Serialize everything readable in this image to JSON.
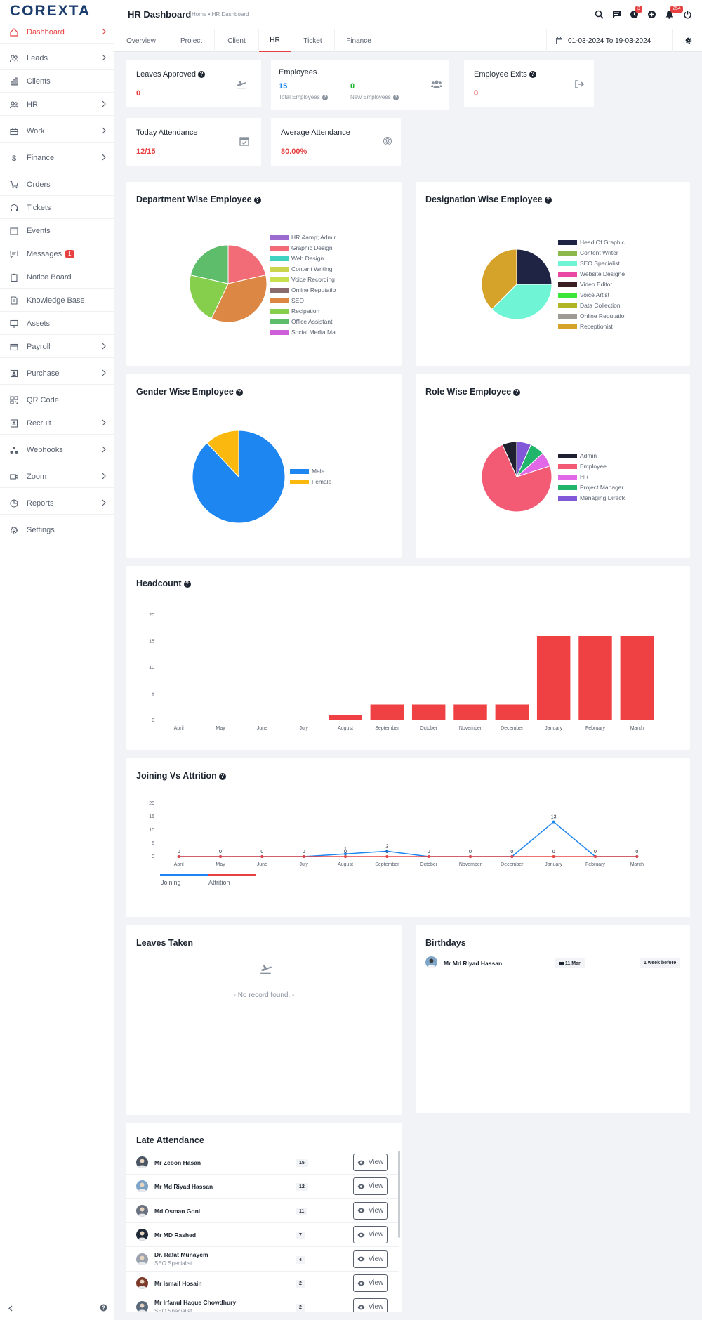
{
  "app": {
    "logo": "COREXTA"
  },
  "sidebar": {
    "items": [
      {
        "label": "Dashboard",
        "icon": "home-icon",
        "active": true,
        "chevron": true
      },
      {
        "label": "Leads",
        "icon": "users-icon",
        "chevron": true
      },
      {
        "label": "Clients",
        "icon": "building-icon",
        "chevron": false
      },
      {
        "label": "HR",
        "icon": "users-icon",
        "chevron": true
      },
      {
        "label": "Work",
        "icon": "briefcase-icon",
        "chevron": true
      },
      {
        "label": "Finance",
        "icon": "dollar-icon",
        "chevron": true
      },
      {
        "label": "Orders",
        "icon": "cart-icon",
        "chevron": false
      },
      {
        "label": "Tickets",
        "icon": "headset-icon",
        "chevron": false
      },
      {
        "label": "Events",
        "icon": "calendar-icon",
        "chevron": false
      },
      {
        "label": "Messages",
        "icon": "chat-icon",
        "chevron": false,
        "badge": "1"
      },
      {
        "label": "Notice Board",
        "icon": "clipboard-icon",
        "chevron": false
      },
      {
        "label": "Knowledge Base",
        "icon": "book-icon",
        "chevron": false
      },
      {
        "label": "Assets",
        "icon": "monitor-icon",
        "chevron": false
      },
      {
        "label": "Payroll",
        "icon": "wallet-icon",
        "chevron": true
      },
      {
        "label": "Purchase",
        "icon": "box-icon",
        "chevron": true
      },
      {
        "label": "QR Code",
        "icon": "qrcode-icon",
        "chevron": false
      },
      {
        "label": "Recruit",
        "icon": "id-card-icon",
        "chevron": true
      },
      {
        "label": "Webhooks",
        "icon": "webhook-icon",
        "chevron": true
      },
      {
        "label": "Zoom",
        "icon": "video-icon",
        "chevron": true
      },
      {
        "label": "Reports",
        "icon": "pie-icon",
        "chevron": true
      },
      {
        "label": "Settings",
        "icon": "gear-icon",
        "chevron": false
      }
    ]
  },
  "header": {
    "title": "HR Dashboard",
    "breadcrumb": "Home • HR Dashboard",
    "badges": {
      "clock": "3",
      "bell": "254"
    }
  },
  "tabs": {
    "items": [
      "Overview",
      "Project",
      "Client",
      "HR",
      "Ticket",
      "Finance"
    ],
    "active": "HR",
    "date_range": "01-03-2024 To 19-03-2024"
  },
  "stats": {
    "leaves_approved": {
      "title": "Leaves Approved",
      "value": "0"
    },
    "employees": {
      "title": "Employees",
      "total": "15",
      "total_label": "Total Employees",
      "new": "0",
      "new_label": "New Employees"
    },
    "employee_exits": {
      "title": "Employee Exits",
      "value": "0"
    },
    "today_attendance": {
      "title": "Today Attendance",
      "value": "12/15"
    },
    "average_attendance": {
      "title": "Average Attendance",
      "value": "80.00%"
    }
  },
  "charts": {
    "department_title": "Department Wise Employee",
    "designation_title": "Designation Wise Employee",
    "gender_title": "Gender Wise Employee",
    "role_title": "Role Wise Employee",
    "headcount_title": "Headcount",
    "joining_title": "Joining Vs Attrition"
  },
  "chart_data": [
    {
      "type": "pie",
      "labels": [
        "HR &amp; Admin",
        "Graphic Design",
        "Web Design",
        "Content Writing",
        "Voice Recording &",
        "Online Reputation",
        "SEO",
        "Recipation",
        "Office Assistant",
        "Social Media Mar"
      ],
      "values": [
        0,
        3,
        0,
        0,
        0,
        0,
        5,
        3,
        3,
        0
      ],
      "colors": [
        "#9c6bd0",
        "#f26c78",
        "#3fd2c1",
        "#cbd44d",
        "#c7e04c",
        "#8a6a6a",
        "#dc8744",
        "#85cf4d",
        "#5dbd6a",
        "#cf5fd8"
      ]
    },
    {
      "type": "pie",
      "labels": [
        "Head Of Graphic",
        "Content Writer",
        "SEO Specialist",
        "Website Designer",
        "Video Editor",
        "Voice Artist",
        "Data Collection",
        "Online Reputation",
        "Receptionist"
      ],
      "values": [
        4,
        0,
        6,
        0,
        0,
        0,
        0,
        0,
        6
      ],
      "colors": [
        "#1f2444",
        "#8cb74a",
        "#6ff5d5",
        "#e949a3",
        "#3a1e22",
        "#3ae638",
        "#b0b524",
        "#9e9a95",
        "#d5a32a"
      ]
    },
    {
      "type": "pie",
      "labels": [
        "Male",
        "Female"
      ],
      "values": [
        88,
        12
      ],
      "colors": [
        "#1e86f0",
        "#fbb90f"
      ]
    },
    {
      "type": "pie",
      "labels": [
        "Admin",
        "Employee",
        "HR",
        "Project Manager",
        "Managing Directo"
      ],
      "values": [
        1,
        11,
        1,
        1,
        1
      ],
      "colors": [
        "#1f2030",
        "#f35b74",
        "#e168e6",
        "#20b56a",
        "#8159d8"
      ]
    },
    {
      "type": "bar",
      "categories": [
        "April",
        "May",
        "June",
        "July",
        "August",
        "September",
        "October",
        "November",
        "December",
        "January",
        "February",
        "March"
      ],
      "values": [
        0,
        0,
        0,
        0,
        1,
        3,
        3,
        3,
        3,
        16,
        16,
        16
      ],
      "ylim": [
        0,
        20
      ],
      "yticks": [
        0,
        5,
        10,
        15,
        20
      ]
    },
    {
      "type": "line",
      "categories": [
        "April",
        "May",
        "June",
        "July",
        "August",
        "September",
        "October",
        "November",
        "December",
        "January",
        "February",
        "March"
      ],
      "series": [
        {
          "name": "Joining",
          "values": [
            0,
            0,
            0,
            0,
            1,
            2,
            0,
            0,
            0,
            13,
            0,
            0
          ],
          "color": "#1e86f0"
        },
        {
          "name": "Attrition",
          "values": [
            0,
            0,
            0,
            0,
            0,
            0,
            0,
            0,
            0,
            0,
            0,
            0
          ],
          "color": "#e84141"
        }
      ],
      "ylim": [
        0,
        20
      ],
      "yticks": [
        0,
        5,
        10,
        15,
        20
      ]
    }
  ],
  "leaves_taken": {
    "title": "Leaves Taken",
    "empty": "- No record found. -"
  },
  "birthdays": {
    "title": "Birthdays",
    "items": [
      {
        "name": "Mr Md Riyad Hassan",
        "date": "11 Mar",
        "when": "1 week before"
      }
    ]
  },
  "late_attendance": {
    "title": "Late Attendance",
    "view_label": "View",
    "items": [
      {
        "name": "Mr Zebon Hasan",
        "sub": "",
        "count": "15"
      },
      {
        "name": "Mr Md Riyad Hassan",
        "sub": "",
        "count": "12"
      },
      {
        "name": "Md Osman Goni",
        "sub": "",
        "count": "11"
      },
      {
        "name": "Mr MD Rashed",
        "sub": "",
        "count": "7"
      },
      {
        "name": "Dr. Rafat Munayem",
        "sub": "SEO Specialist",
        "count": "4"
      },
      {
        "name": "Mr Ismail Hosain",
        "sub": "",
        "count": "2"
      },
      {
        "name": "Mr Irfanul Haque Chowdhury",
        "sub": "SEO Specialist",
        "count": "2"
      }
    ]
  }
}
